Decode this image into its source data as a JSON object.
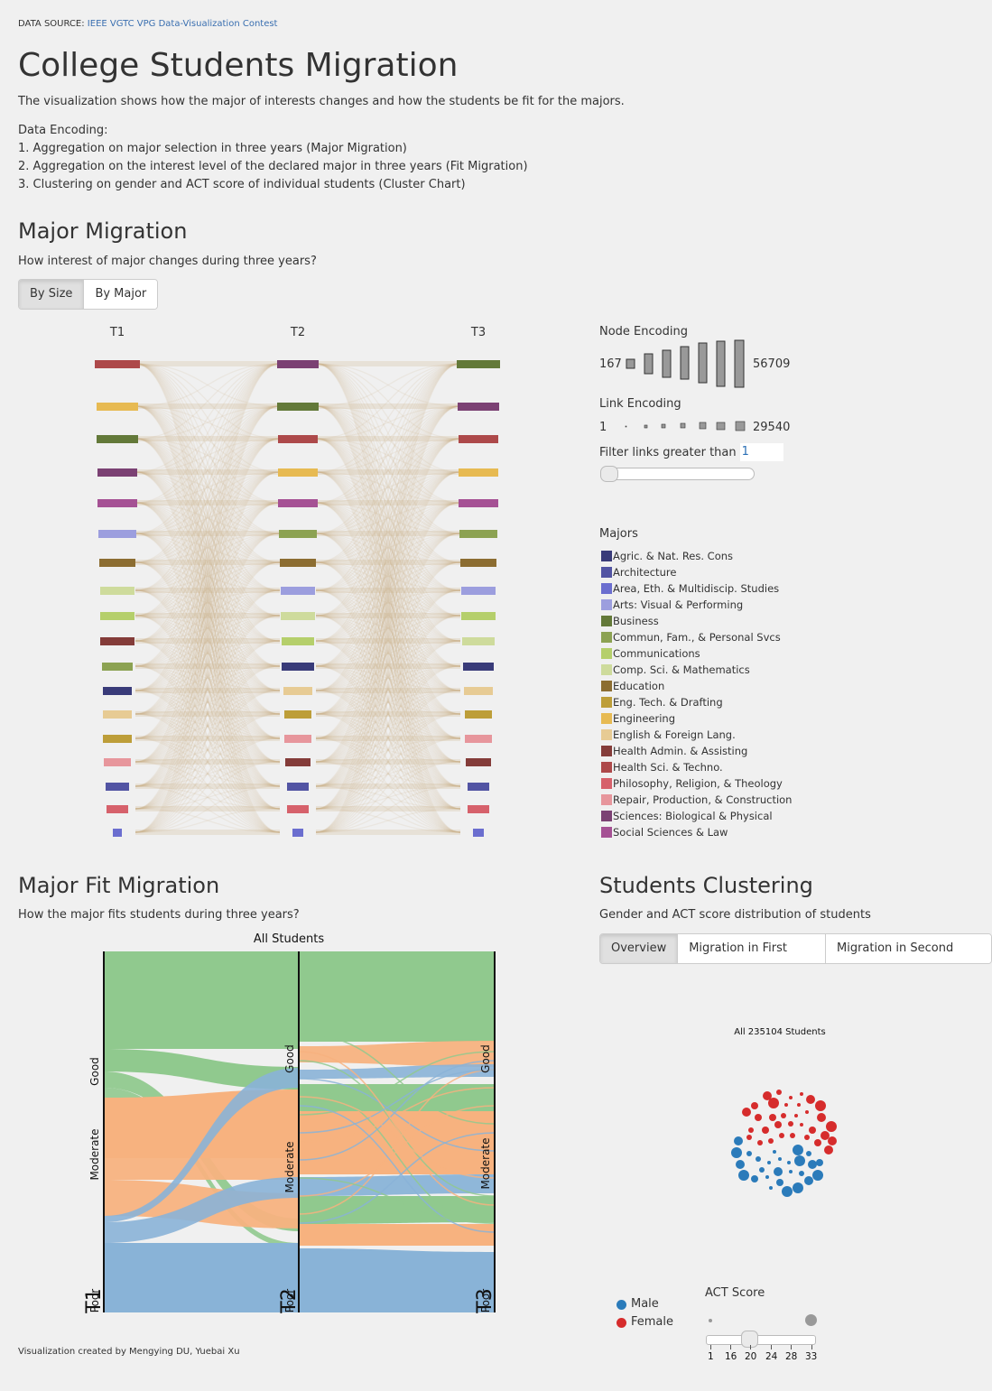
{
  "source": {
    "label": "DATA SOURCE:",
    "link": "IEEE VGTC VPG Data-Visualization Contest"
  },
  "title": "College Students Migration",
  "intro": "The visualization shows how the major of interests changes and how the students be fit for the majors.",
  "encoding": {
    "heading": "Data Encoding:",
    "items": [
      "1. Aggregation on major selection in three years (Major Migration)",
      "2. Aggregation on the interest level of the declared major in three years (Fit Migration)",
      "3. Clustering on gender and ACT score of individual students (Cluster Chart)"
    ]
  },
  "major_migration": {
    "title": "Major Migration",
    "subtitle": "How interest of major changes during three years?",
    "buttons": [
      "By Size",
      "By Major"
    ],
    "columns": [
      "T1",
      "T2",
      "T3"
    ]
  },
  "node_encoding": {
    "title": "Node Encoding",
    "min": "167",
    "max": "56709"
  },
  "link_encoding": {
    "title": "Link Encoding",
    "min": "1",
    "max": "29540"
  },
  "filter": {
    "label": "Filter links greater than",
    "value": "1"
  },
  "majors_legend": {
    "title": "Majors",
    "items": [
      {
        "label": "Agric. & Nat. Res. Cons",
        "color": "#393b79"
      },
      {
        "label": "Architecture",
        "color": "#5254a3"
      },
      {
        "label": "Area, Eth. & Multidiscip. Studies",
        "color": "#6b6ecf"
      },
      {
        "label": "Arts: Visual & Performing",
        "color": "#9c9ede"
      },
      {
        "label": "Business",
        "color": "#637939"
      },
      {
        "label": "Commun, Fam., & Personal Svcs",
        "color": "#8ca252"
      },
      {
        "label": "Communications",
        "color": "#b5cf6b"
      },
      {
        "label": "Comp. Sci. & Mathematics",
        "color": "#cedb9c"
      },
      {
        "label": "Education",
        "color": "#8c6d31"
      },
      {
        "label": "Eng. Tech. & Drafting",
        "color": "#bd9e39"
      },
      {
        "label": "Engineering",
        "color": "#e7ba52"
      },
      {
        "label": "English & Foreign Lang.",
        "color": "#e7cb94"
      },
      {
        "label": "Health Admin. & Assisting",
        "color": "#843c39"
      },
      {
        "label": "Health Sci. & Techno.",
        "color": "#ad494a"
      },
      {
        "label": "Philosophy, Religion, & Theology",
        "color": "#d6616b"
      },
      {
        "label": "Repair, Production, & Construction",
        "color": "#e7969c"
      },
      {
        "label": "Sciences: Biological & Physical",
        "color": "#7b4173"
      },
      {
        "label": "Social Sciences & Law",
        "color": "#a55194"
      }
    ]
  },
  "fit_migration": {
    "title": "Major Fit Migration",
    "subtitle": "How the major fits students during three years?",
    "chart_title": "All Students",
    "time_labels": [
      "T1",
      "T2",
      "T3"
    ],
    "levels": [
      "Good",
      "Moderate",
      "Poor"
    ],
    "colors": {
      "Good": "#90c98e",
      "Moderate": "#f7b27f",
      "Poor": "#89b3d7"
    }
  },
  "clustering": {
    "title": "Students Clustering",
    "subtitle": "Gender and ACT score distribution of students",
    "buttons": [
      "Overview",
      "Migration in First Year",
      "Migration in Second Year"
    ],
    "chart_title": "All 235104 Students",
    "legend": [
      {
        "label": "Male",
        "color": "#2b7bba"
      },
      {
        "label": "Female",
        "color": "#d62c2c"
      }
    ],
    "act_title": "ACT Score",
    "act_ticks": [
      "1",
      "16",
      "20",
      "24",
      "28",
      "33"
    ]
  },
  "credit": "Visualization created by Mengying DU, Yuebai Xu"
}
